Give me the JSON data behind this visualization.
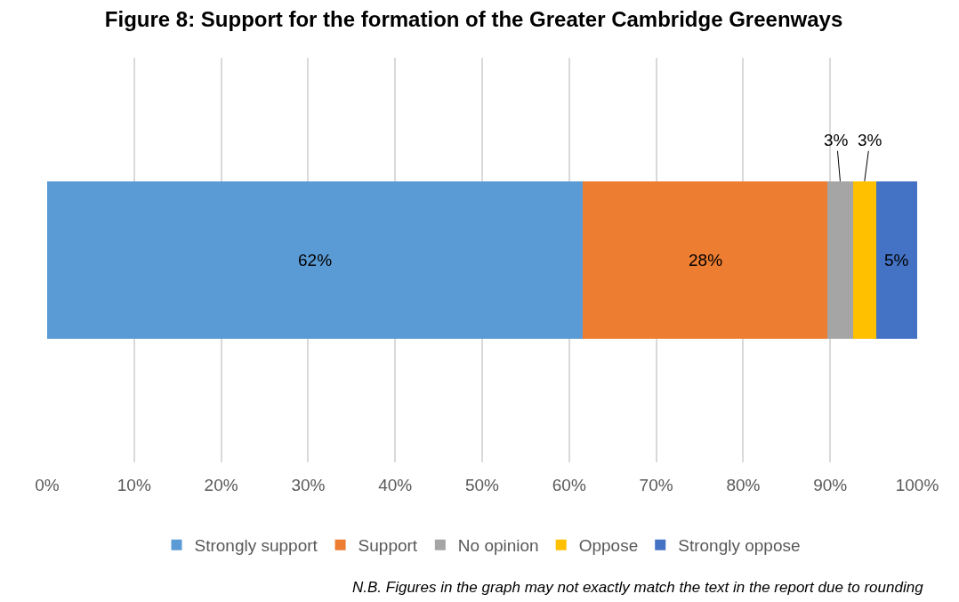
{
  "chart_data": {
    "type": "bar",
    "orientation": "horizontal",
    "stacked": true,
    "title": "Figure 8: Support for the formation of the Greater Cambridge Greenways",
    "categories": [
      null
    ],
    "series": [
      {
        "name": "Strongly support",
        "color": "#5b9bd5",
        "values": [
          61.6
        ],
        "value_labels": [
          "62%"
        ]
      },
      {
        "name": "Support",
        "color": "#ed7d31",
        "values": [
          28.1
        ],
        "value_labels": [
          "28%"
        ]
      },
      {
        "name": "No opinion",
        "color": "#a5a5a5",
        "values": [
          2.9
        ],
        "value_labels": [
          "3%"
        ]
      },
      {
        "name": "Oppose",
        "color": "#ffc000",
        "values": [
          2.7
        ],
        "value_labels": [
          "3%"
        ]
      },
      {
        "name": "Strongly oppose",
        "color": "#4472c4",
        "values": [
          4.7
        ],
        "value_labels": [
          "5%"
        ]
      }
    ],
    "xlim": [
      0,
      100
    ],
    "xticks": [
      {
        "value": 0,
        "label": "0%"
      },
      {
        "value": 10,
        "label": "10%"
      },
      {
        "value": 20,
        "label": "20%"
      },
      {
        "value": 30,
        "label": "30%"
      },
      {
        "value": 40,
        "label": "40%"
      },
      {
        "value": 50,
        "label": "50%"
      },
      {
        "value": 60,
        "label": "60%"
      },
      {
        "value": 70,
        "label": "70%"
      },
      {
        "value": 80,
        "label": "80%"
      },
      {
        "value": 90,
        "label": "90%"
      },
      {
        "value": 100,
        "label": "100%"
      }
    ],
    "grid": "x",
    "legend": "bottom",
    "annotations": [
      "N.B. Figures in the graph may not exactly match the text in the report due to rounding"
    ]
  }
}
